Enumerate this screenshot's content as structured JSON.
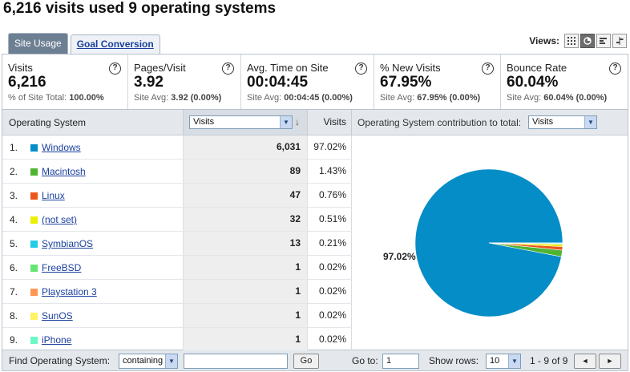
{
  "page_title": "6,216 visits used 9 operating systems",
  "tabs": [
    {
      "label": "Site Usage",
      "active": true
    },
    {
      "label": "Goal Conversion",
      "active": false
    }
  ],
  "views_label": "Views:",
  "views_icons": [
    "table-view-icon",
    "pie-view-icon",
    "performance-view-icon",
    "comparison-view-icon"
  ],
  "metrics": [
    {
      "label": "Visits",
      "value": "6,216",
      "sub_label": "% of Site Total:",
      "sub_value": "100.00%"
    },
    {
      "label": "Pages/Visit",
      "value": "3.92",
      "sub_label": "Site Avg:",
      "sub_value": "3.92 (0.00%)"
    },
    {
      "label": "Avg. Time on Site",
      "value": "00:04:45",
      "sub_label": "Site Avg:",
      "sub_value": "00:04:45 (0.00%)"
    },
    {
      "label": "% New Visits",
      "value": "67.95%",
      "sub_label": "Site Avg:",
      "sub_value": "67.95% (0.00%)"
    },
    {
      "label": "Bounce Rate",
      "value": "60.04%",
      "sub_label": "Site Avg:",
      "sub_value": "60.04% (0.00%)"
    }
  ],
  "table": {
    "dim_header": "Operating System",
    "metric_select": "Visits",
    "visits_header": "Visits",
    "contrib_label": "Operating System contribution to total:",
    "contrib_select": "Visits",
    "rows": [
      {
        "num": "1.",
        "name": "Windows",
        "visits": "6,031",
        "pct": "97.02%",
        "color": "#058dc7"
      },
      {
        "num": "2.",
        "name": "Macintosh",
        "visits": "89",
        "pct": "1.43%",
        "color": "#50b432"
      },
      {
        "num": "3.",
        "name": "Linux",
        "visits": "47",
        "pct": "0.76%",
        "color": "#ed561b"
      },
      {
        "num": "4.",
        "name": "(not set)",
        "visits": "32",
        "pct": "0.51%",
        "color": "#edef00"
      },
      {
        "num": "5.",
        "name": "SymbianOS",
        "visits": "13",
        "pct": "0.21%",
        "color": "#24cbe5"
      },
      {
        "num": "6.",
        "name": "FreeBSD",
        "visits": "1",
        "pct": "0.02%",
        "color": "#64e572"
      },
      {
        "num": "7.",
        "name": "Playstation 3",
        "visits": "1",
        "pct": "0.02%",
        "color": "#ff9655"
      },
      {
        "num": "8.",
        "name": "SunOS",
        "visits": "1",
        "pct": "0.02%",
        "color": "#fff263"
      },
      {
        "num": "9.",
        "name": "iPhone",
        "visits": "1",
        "pct": "0.02%",
        "color": "#6af9c4"
      }
    ]
  },
  "chart_data": {
    "type": "pie",
    "categories": [
      "Windows",
      "Macintosh",
      "Linux",
      "(not set)",
      "SymbianOS",
      "FreeBSD",
      "Playstation 3",
      "SunOS",
      "iPhone"
    ],
    "values": [
      97.02,
      1.43,
      0.76,
      0.51,
      0.21,
      0.02,
      0.02,
      0.02,
      0.02
    ],
    "colors": [
      "#058dc7",
      "#50b432",
      "#ed561b",
      "#edef00",
      "#24cbe5",
      "#64e572",
      "#ff9655",
      "#fff263",
      "#6af9c4"
    ],
    "slice_label": "97.02%"
  },
  "footer": {
    "find_label": "Find Operating System:",
    "match_select": "containing",
    "search_value": "",
    "go_button": "Go",
    "goto_label": "Go to:",
    "goto_value": "1",
    "show_rows_label": "Show rows:",
    "show_rows_value": "10",
    "range": "1 - 9 of 9",
    "prev_glyph": "◄",
    "next_glyph": "►"
  }
}
